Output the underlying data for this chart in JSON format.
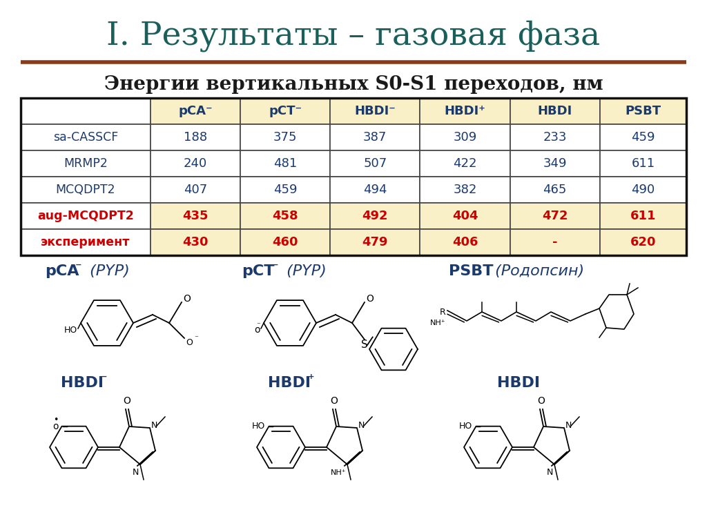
{
  "title": "I. Результаты – газовая фаза",
  "title_color": "#1a5f5a",
  "title_fontsize": 34,
  "separator_color": "#8B3A1A",
  "subtitle": "Энергии вертикальных S0-S1 переходов, нм",
  "subtitle_fontsize": 20,
  "subtitle_color": "#1a1a1a",
  "col_headers": [
    "pCA⁻",
    "pCT⁻",
    "HBDI⁻",
    "HBDI⁺",
    "HBDI",
    "PSBT"
  ],
  "row_headers": [
    "sa-CASSCF",
    "MRMP2",
    "MCQDPT2",
    "aug-MCQDPT2",
    "эксперимент"
  ],
  "table_data": [
    [
      "188",
      "375",
      "387",
      "309",
      "233",
      "459"
    ],
    [
      "240",
      "481",
      "507",
      "422",
      "349",
      "611"
    ],
    [
      "407",
      "459",
      "494",
      "382",
      "465",
      "490"
    ],
    [
      "435",
      "458",
      "492",
      "404",
      "472",
      "611"
    ],
    [
      "430",
      "460",
      "479",
      "406",
      "-",
      "620"
    ]
  ],
  "highlight_rows": [
    3,
    4
  ],
  "highlight_color": "#FAF0C8",
  "normal_color": "#FFFFFF",
  "header_bg": "#FAF0C8",
  "normal_text_color": "#1a3a6e",
  "highlight_text_color": "#cc0000",
  "header_text_color": "#1a3a6e",
  "row_header_text_color": "#1a3a6e",
  "table_border_color": "#444444",
  "bg_color": "#ffffff",
  "mol_label_color": "#1a3a6e",
  "mol_label_fontsize": 16
}
